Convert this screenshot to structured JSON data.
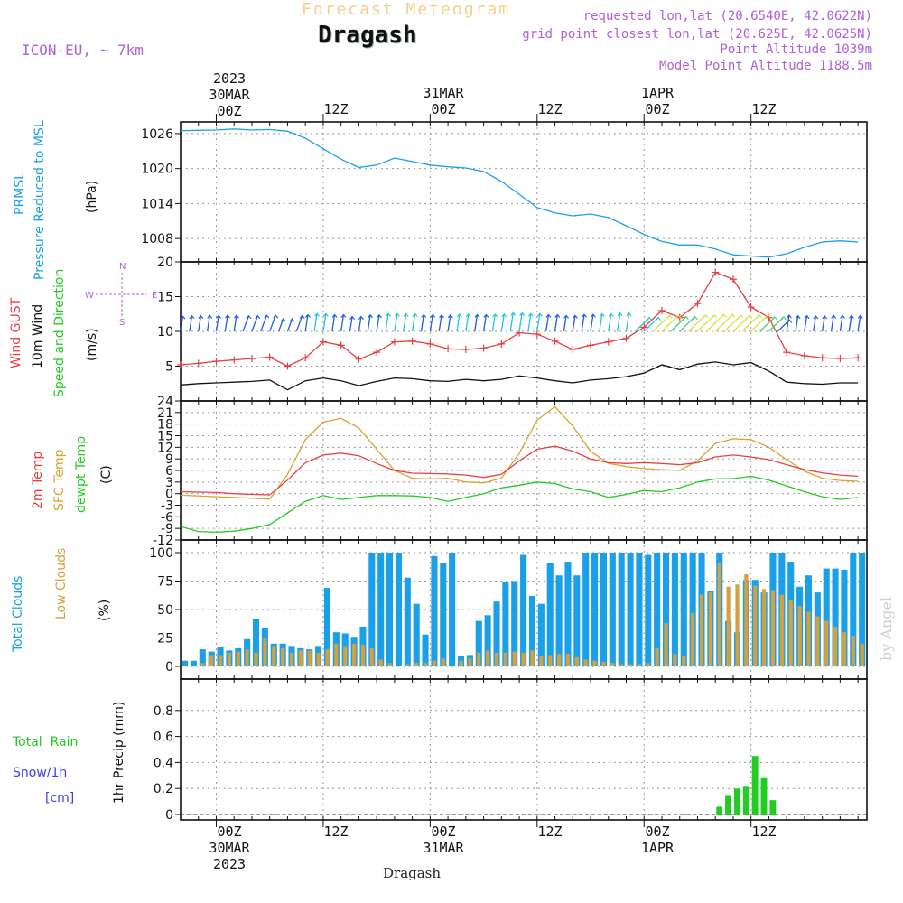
{
  "header": {
    "subtitle": "Forecast Meteogram",
    "location": "Dragash",
    "model": "ICON-EU, ~ 7km",
    "info_lines": [
      "requested lon,lat (20.6540E, 42.0622N)",
      "grid point closest lon,lat (20.625E, 42.0625N)",
      "Point Altitude 1039m",
      "Model Point Altitude 1188.5m"
    ],
    "watermark": "by Angel"
  },
  "time_axis": {
    "top_labels": [
      {
        "lines": [
          "2023",
          "30MAR",
          "00Z"
        ]
      },
      {
        "lines": [
          "12Z"
        ]
      },
      {
        "lines": [
          "31MAR",
          "00Z"
        ]
      },
      {
        "lines": [
          "12Z"
        ]
      },
      {
        "lines": [
          "1APR",
          "00Z"
        ]
      },
      {
        "lines": [
          "12Z"
        ]
      }
    ],
    "bottom_labels": [
      {
        "lines": [
          "00Z",
          "30MAR",
          "2023"
        ]
      },
      {
        "lines": [
          "12Z"
        ]
      },
      {
        "lines": [
          "00Z",
          "31MAR"
        ]
      },
      {
        "lines": [
          "12Z"
        ]
      },
      {
        "lines": [
          "00Z",
          "1APR"
        ]
      },
      {
        "lines": [
          "12Z"
        ]
      }
    ],
    "footer": "Dragash"
  },
  "colors": {
    "pressure": "#1aa0e8",
    "gust": "#e84040",
    "wind": "#111111",
    "temp2m": "#e84040",
    "sfc": "#e0a030",
    "dewpt": "#22cc22",
    "total_cloud": "#1aa0e8",
    "low_cloud": "#d4a040",
    "rain": "#22cc22",
    "snow": "#4040e0",
    "direction": "#b060d8"
  },
  "panels": {
    "pressure": {
      "labels": [
        {
          "text": "PRMSL",
          "color": "#1aa0e8"
        },
        {
          "text": "Pressure Reduced to MSL",
          "color": "#1aa0e8"
        },
        {
          "text": "(hPa)",
          "color": "#111111"
        }
      ]
    },
    "wind": {
      "labels": [
        {
          "text": "Wind GUST",
          "color": "#e84040"
        },
        {
          "text": "10m Wind",
          "color": "#111111"
        },
        {
          "text": "Speed and Direction",
          "color": "#22cc22"
        },
        {
          "text": "(m/s)",
          "color": "#111111"
        }
      ],
      "compass": {
        "n": "N",
        "s": "S",
        "e": "E",
        "w": "W"
      }
    },
    "temperature": {
      "labels": [
        {
          "text": "2m Temp",
          "color": "#e84040"
        },
        {
          "text": "SFC Temp",
          "color": "#e0a030"
        },
        {
          "text": "dewpt Temp",
          "color": "#22cc22"
        },
        {
          "text": "(C)",
          "color": "#111111"
        }
      ]
    },
    "clouds": {
      "labels": [
        {
          "text": "Total Clouds",
          "color": "#1aa0e8"
        },
        {
          "text": "Low Clouds",
          "color": "#d4a040"
        },
        {
          "text": "(%)",
          "color": "#111111"
        }
      ]
    },
    "precip": {
      "legend": [
        {
          "text": "Total  Rain",
          "color": "#22cc22"
        },
        {
          "text": "Snow/1h",
          "color": "#4040e0"
        },
        {
          "text": "[cm]",
          "color": "#4040e0"
        }
      ],
      "axis_label": "1hr Precip (mm)"
    }
  },
  "chart_data": [
    {
      "type": "line",
      "name": "pressure",
      "x_hours": [
        -4,
        0,
        2,
        4,
        6,
        8,
        10,
        12,
        14,
        16,
        18,
        20,
        22,
        24,
        26,
        28,
        30,
        32,
        34,
        36,
        38,
        40,
        42,
        44,
        46,
        48,
        50,
        52,
        54,
        56,
        58,
        60,
        62,
        64,
        66,
        68,
        70,
        72
      ],
      "y": [
        1026.5,
        1026.6,
        1026.8,
        1026.6,
        1026.7,
        1026.4,
        1025.2,
        1023.4,
        1021.6,
        1020.2,
        1020.6,
        1021.8,
        1021.2,
        1020.6,
        1020.3,
        1020.1,
        1019.5,
        1017.8,
        1015.6,
        1013.3,
        1012.4,
        1011.9,
        1012.2,
        1011.6,
        1010.2,
        1008.7,
        1007.5,
        1006.9,
        1006.9,
        1006.2,
        1005.2,
        1005.0,
        1004.8,
        1005.4,
        1006.5,
        1007.4,
        1007.6,
        1007.4
      ],
      "ylim": [
        1004,
        1028
      ],
      "yticks": [
        1008,
        1014,
        1020,
        1026
      ]
    },
    {
      "type": "line",
      "name": "wind",
      "x_hours": [
        -4,
        -2,
        0,
        2,
        4,
        6,
        8,
        10,
        12,
        14,
        16,
        18,
        20,
        22,
        24,
        26,
        28,
        30,
        32,
        34,
        36,
        38,
        40,
        42,
        44,
        46,
        48,
        50,
        52,
        54,
        56,
        58,
        60,
        62,
        64,
        66,
        68,
        70,
        72
      ],
      "gust": [
        5.2,
        5.4,
        5.7,
        5.9,
        6.1,
        6.3,
        5.0,
        6.2,
        8.5,
        8.0,
        6.0,
        7.0,
        8.5,
        8.6,
        8.2,
        7.5,
        7.4,
        7.6,
        8.2,
        9.8,
        9.6,
        8.6,
        7.4,
        8.0,
        8.5,
        9.0,
        10.6,
        13.0,
        12.0,
        14.0,
        18.5,
        17.5,
        13.5,
        12.0,
        7.0,
        6.5,
        6.2,
        6.1,
        6.2
      ],
      "speed": [
        2.3,
        2.5,
        2.6,
        2.7,
        2.8,
        3.0,
        1.6,
        2.9,
        3.3,
        2.9,
        2.2,
        2.8,
        3.3,
        3.2,
        2.9,
        2.8,
        3.1,
        2.9,
        3.1,
        3.6,
        3.3,
        2.9,
        2.6,
        3.0,
        3.2,
        3.5,
        4.0,
        5.2,
        4.5,
        5.3,
        5.6,
        5.2,
        5.5,
        4.3,
        2.7,
        2.5,
        2.4,
        2.6,
        2.6
      ],
      "ylim": [
        0,
        20
      ],
      "yticks": [
        5,
        10,
        15,
        20
      ]
    },
    {
      "type": "line",
      "name": "temperature",
      "x_hours": [
        -4,
        -2,
        0,
        2,
        4,
        6,
        8,
        10,
        12,
        14,
        16,
        18,
        20,
        22,
        24,
        26,
        28,
        30,
        32,
        34,
        36,
        38,
        40,
        42,
        44,
        46,
        48,
        50,
        52,
        54,
        56,
        58,
        60,
        62,
        64,
        66,
        68,
        70,
        72
      ],
      "t2m": [
        0.5,
        0.4,
        0.3,
        0.0,
        -0.2,
        -0.3,
        3.5,
        8.0,
        10.0,
        10.5,
        9.8,
        7.8,
        6.0,
        5.3,
        5.2,
        5.1,
        4.8,
        4.2,
        5.0,
        8.5,
        11.5,
        12.3,
        11.0,
        9.0,
        8.0,
        7.8,
        8.0,
        7.8,
        7.5,
        8.0,
        9.5,
        10.0,
        9.5,
        8.8,
        7.5,
        6.2,
        5.4,
        4.8,
        4.5
      ],
      "sfc": [
        -0.4,
        -0.6,
        -0.8,
        -1.0,
        -1.2,
        -1.4,
        5.0,
        14.0,
        18.5,
        19.5,
        17.0,
        11.5,
        6.0,
        4.0,
        3.8,
        4.0,
        3.0,
        2.8,
        4.0,
        10.5,
        19.0,
        22.5,
        17.5,
        11.0,
        7.8,
        7.0,
        6.5,
        6.2,
        6.0,
        8.5,
        13.0,
        14.2,
        14.0,
        12.0,
        8.8,
        5.8,
        4.0,
        3.4,
        3.2
      ],
      "dewpt": [
        -8.5,
        -9.8,
        -10.0,
        -9.7,
        -9.0,
        -8.0,
        -5.0,
        -2.0,
        -0.5,
        -1.5,
        -1.0,
        -0.5,
        -0.5,
        -0.6,
        -1.0,
        -2.0,
        -1.0,
        0.0,
        1.5,
        2.2,
        3.0,
        2.6,
        1.2,
        0.5,
        -1.0,
        -0.2,
        0.8,
        0.5,
        1.5,
        3.0,
        3.8,
        3.9,
        4.5,
        3.5,
        2.0,
        0.5,
        -0.8,
        -1.5,
        -1.0
      ],
      "ylim": [
        -12,
        24
      ],
      "yticks": [
        -12,
        -9,
        -6,
        -3,
        0,
        3,
        6,
        9,
        12,
        15,
        18,
        21,
        24
      ]
    },
    {
      "type": "bar",
      "name": "clouds",
      "x_hours": [
        -4,
        -3,
        -2,
        -1,
        0,
        1,
        2,
        3,
        4,
        5,
        6,
        7,
        8,
        9,
        10,
        11,
        12,
        13,
        14,
        15,
        16,
        17,
        18,
        19,
        20,
        21,
        22,
        23,
        24,
        25,
        26,
        27,
        28,
        29,
        30,
        31,
        32,
        33,
        34,
        35,
        36,
        37,
        38,
        39,
        40,
        41,
        42,
        43,
        44,
        45,
        46,
        47,
        48,
        49,
        50,
        51,
        52,
        53,
        54,
        55,
        56,
        57,
        58,
        59,
        60,
        61,
        62,
        63,
        64,
        65,
        66,
        67,
        68,
        69,
        70,
        71,
        72
      ],
      "total": [
        5,
        5,
        15,
        13,
        17,
        14,
        16,
        24,
        42,
        34,
        20,
        20,
        18,
        16,
        15,
        18,
        69,
        30,
        29,
        26,
        35,
        100,
        100,
        100,
        100,
        78,
        55,
        28,
        97,
        91,
        100,
        9,
        10,
        40,
        45,
        57,
        74,
        75,
        98,
        62,
        55,
        91,
        80,
        92,
        80,
        100,
        100,
        100,
        100,
        100,
        100,
        100,
        98,
        100,
        100,
        100,
        100,
        100,
        100,
        66,
        100,
        40,
        30,
        76,
        76,
        65,
        100,
        100,
        92,
        70,
        80,
        65,
        86,
        86,
        85,
        100,
        100
      ],
      "low": [
        0,
        0,
        3,
        10,
        10,
        12,
        13,
        15,
        12,
        25,
        18,
        16,
        12,
        14,
        14,
        12,
        15,
        20,
        18,
        20,
        19,
        16,
        6,
        3,
        0,
        2,
        3,
        3,
        5,
        7,
        0,
        5,
        7,
        12,
        14,
        12,
        12,
        13,
        12,
        14,
        9,
        10,
        11,
        11,
        8,
        6,
        5,
        4,
        3,
        2,
        2,
        2,
        3,
        16,
        38,
        11,
        9,
        47,
        63,
        65,
        91,
        70,
        72,
        81,
        71,
        68,
        67,
        63,
        58,
        53,
        48,
        44,
        40,
        35,
        30,
        27,
        20
      ],
      "ylim": [
        0,
        100
      ],
      "yticks": [
        0,
        25,
        50,
        75,
        100
      ]
    },
    {
      "type": "bar",
      "name": "precip",
      "x_hours": [
        56,
        57,
        58,
        59,
        60,
        61,
        62
      ],
      "rain": [
        0.06,
        0.15,
        0.2,
        0.22,
        0.45,
        0.28,
        0.11
      ],
      "ylim": [
        0,
        1.0
      ],
      "yticks": [
        0,
        0.2,
        0.4,
        0.6,
        0.8
      ]
    }
  ]
}
